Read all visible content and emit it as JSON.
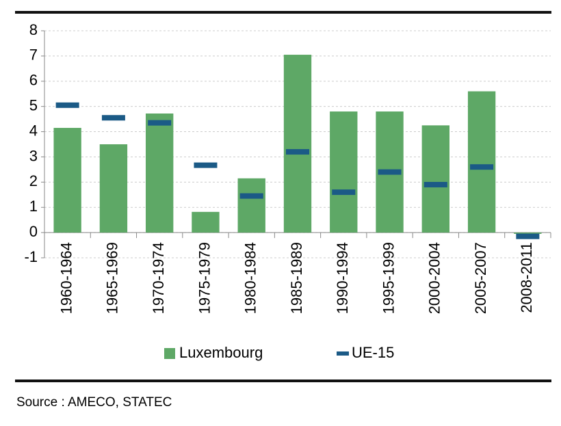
{
  "chart_data": {
    "type": "bar",
    "categories": [
      "1960-1964",
      "1965-1969",
      "1970-1974",
      "1975-1979",
      "1980-1984",
      "1985-1989",
      "1990-1994",
      "1995-1999",
      "2000-2004",
      "2005-2007",
      "2008-2011"
    ],
    "series": [
      {
        "name": "Luxembourg",
        "color": "#5ea866",
        "mark": "bar",
        "values": [
          4.15,
          3.5,
          4.72,
          0.82,
          2.15,
          7.05,
          4.8,
          4.8,
          4.25,
          5.6,
          -0.05
        ]
      },
      {
        "name": "UE-15",
        "color": "#1b5a86",
        "mark": "dash",
        "values": [
          5.05,
          4.55,
          4.35,
          2.67,
          1.45,
          3.2,
          1.6,
          2.4,
          1.9,
          2.6,
          -0.15
        ]
      }
    ],
    "ylim": [
      -1,
      8
    ],
    "yticks": [
      -1,
      0,
      1,
      2,
      3,
      4,
      5,
      6,
      7,
      8
    ],
    "grid": true,
    "legend": "bottom",
    "source": "Source : AMECO, STATEC"
  }
}
